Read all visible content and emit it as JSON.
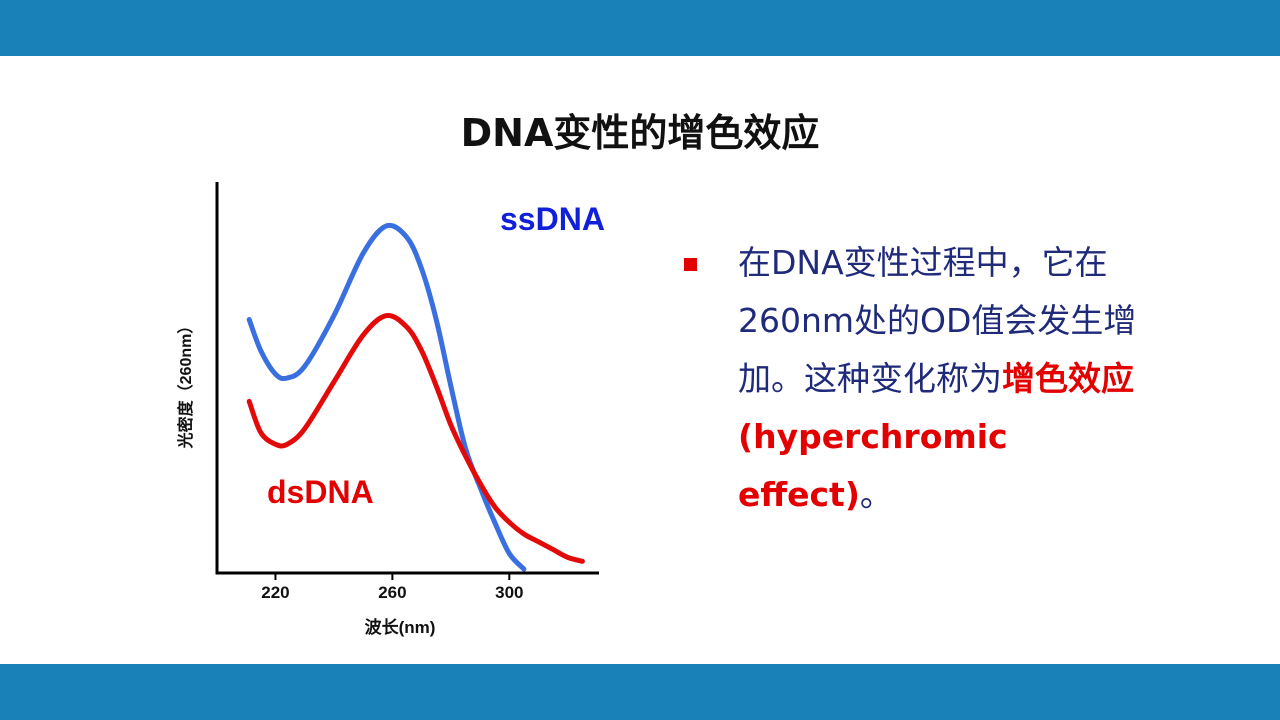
{
  "slide": {
    "title": "DNA变性的增色效应",
    "accent_color": "#1a80b8"
  },
  "bullet": {
    "icon": "square-bullet-icon",
    "text_before": "在DNA变性过程中，它在260nm处的OD值会发生增加。这种变化称为",
    "highlight": "增色效应 (hyperchromic effect)",
    "text_after": "。",
    "text_color": "#1f2a7a",
    "highlight_color": "#e30000"
  },
  "chart_data": {
    "type": "line",
    "title": "",
    "xlabel": "波长(nm)",
    "ylabel": "光密度（260nm）",
    "xticks": [
      220,
      260,
      300
    ],
    "xlim": [
      200,
      330
    ],
    "ylim": [
      0,
      1
    ],
    "grid": false,
    "series": [
      {
        "name": "ssDNA",
        "color": "#3a6fe0",
        "label_color": "#1020d8",
        "x": [
          211,
          215,
          220,
          224,
          230,
          240,
          250,
          258,
          265,
          270,
          275,
          280,
          285,
          290,
          295,
          300,
          305
        ],
        "y": [
          0.65,
          0.57,
          0.51,
          0.5,
          0.53,
          0.66,
          0.82,
          0.89,
          0.86,
          0.78,
          0.65,
          0.48,
          0.32,
          0.22,
          0.13,
          0.05,
          0.01
        ]
      },
      {
        "name": "dsDNA",
        "color": "#e30a0a",
        "label_color": "#e30000",
        "x": [
          211,
          215,
          220,
          224,
          230,
          240,
          250,
          258,
          265,
          270,
          275,
          280,
          285,
          290,
          295,
          300,
          305,
          310,
          315,
          320,
          325
        ],
        "y": [
          0.44,
          0.36,
          0.33,
          0.33,
          0.37,
          0.49,
          0.61,
          0.66,
          0.63,
          0.57,
          0.48,
          0.38,
          0.3,
          0.23,
          0.17,
          0.13,
          0.1,
          0.08,
          0.06,
          0.04,
          0.03
        ]
      }
    ]
  }
}
